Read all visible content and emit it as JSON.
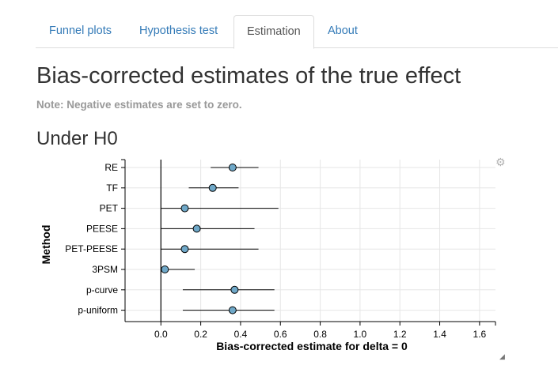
{
  "tabs": [
    {
      "label": "Funnel plots",
      "active": false
    },
    {
      "label": "Hypothesis test",
      "active": false
    },
    {
      "label": "Estimation",
      "active": true
    },
    {
      "label": "About",
      "active": false
    }
  ],
  "title": "Bias-corrected estimates of the true effect",
  "note": "Note: Negative estimates are set to zero.",
  "section_title": "Under H0",
  "icons": {
    "settings": "gear-icon",
    "resize": "resize-handle-icon"
  },
  "colors": {
    "point_fill": "#6fa8c8",
    "link": "#337ab7"
  },
  "chart_data": {
    "type": "scatter",
    "orientation": "horizontal-forest",
    "xlabel": "Bias-corrected estimate for delta = 0",
    "ylabel": "Method",
    "xlim": [
      -0.18,
      1.68
    ],
    "xticks": [
      0.0,
      0.2,
      0.4,
      0.6,
      0.8,
      1.0,
      1.2,
      1.4,
      1.6
    ],
    "xtick_labels": [
      "0.0",
      "0.2",
      "0.4",
      "0.6",
      "0.8",
      "1.0",
      "1.2",
      "1.4",
      "1.6"
    ],
    "reference_line_x": 0,
    "grid": true,
    "methods": [
      {
        "label": "RE",
        "estimate": 0.36,
        "lower": 0.25,
        "upper": 0.49
      },
      {
        "label": "TF",
        "estimate": 0.26,
        "lower": 0.14,
        "upper": 0.39
      },
      {
        "label": "PET",
        "estimate": 0.12,
        "lower": 0.0,
        "upper": 0.59
      },
      {
        "label": "PEESE",
        "estimate": 0.18,
        "lower": 0.0,
        "upper": 0.47
      },
      {
        "label": "PET-PEESE",
        "estimate": 0.12,
        "lower": 0.0,
        "upper": 0.49
      },
      {
        "label": "3PSM",
        "estimate": 0.02,
        "lower": 0.0,
        "upper": 0.17
      },
      {
        "label": "p-curve",
        "estimate": 0.37,
        "lower": 0.11,
        "upper": 0.57
      },
      {
        "label": "p-uniform",
        "estimate": 0.36,
        "lower": 0.11,
        "upper": 0.57
      }
    ]
  }
}
